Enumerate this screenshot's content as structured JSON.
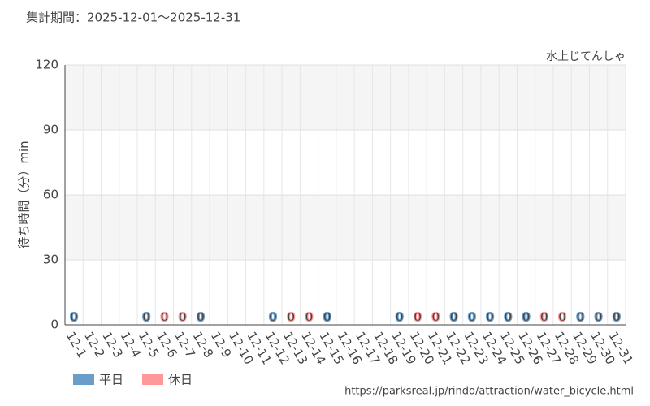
{
  "chart_data": {
    "type": "bar",
    "title": "集計期間：2025-12-01～2025-12-31",
    "subtitle": "水上じてんしゃ",
    "y_label": "待ち時間（分）min",
    "source": "https://parksreal.jp/rindo/attraction/water_bicycle.html",
    "categories": [
      "12-1",
      "12-2",
      "12-3",
      "12-4",
      "12-5",
      "12-6",
      "12-7",
      "12-8",
      "12-9",
      "12-10",
      "12-11",
      "12-12",
      "12-13",
      "12-14",
      "12-15",
      "12-16",
      "12-17",
      "12-18",
      "12-19",
      "12-20",
      "12-21",
      "12-22",
      "12-23",
      "12-24",
      "12-25",
      "12-26",
      "12-27",
      "12-28",
      "12-29",
      "12-30",
      "12-31"
    ],
    "category_colors": [
      "#444",
      "#444",
      "#444",
      "#444",
      "#444",
      "#ff8888",
      "#ff8888",
      "#444",
      "#444",
      "#444",
      "#444",
      "#444",
      "#ff8888",
      "#ff8888",
      "#444",
      "#444",
      "#444",
      "#444",
      "#444",
      "#ff8888",
      "#ff8888",
      "#444",
      "#444",
      "#444",
      "#444",
      "#444",
      "#ff8888",
      "#ff8888",
      "#444",
      "#444",
      "#444"
    ],
    "series": [
      {
        "name": "平日",
        "color": "#6a9ec8",
        "values": [
          0,
          null,
          null,
          null,
          0,
          null,
          null,
          0,
          null,
          null,
          null,
          0,
          null,
          null,
          0,
          null,
          null,
          null,
          0,
          null,
          null,
          0,
          0,
          0,
          0,
          0,
          null,
          null,
          0,
          0,
          0
        ]
      },
      {
        "name": "休日",
        "color": "#ff9999",
        "values": [
          null,
          null,
          null,
          null,
          null,
          0,
          0,
          null,
          null,
          null,
          null,
          null,
          0,
          0,
          null,
          null,
          null,
          null,
          null,
          0,
          0,
          null,
          null,
          null,
          null,
          null,
          0,
          0,
          null,
          null,
          null
        ]
      }
    ],
    "ylim": [
      0,
      120
    ],
    "yticks": [
      0,
      30,
      60,
      90,
      120
    ],
    "grid": true,
    "legend": "bottom-left"
  }
}
